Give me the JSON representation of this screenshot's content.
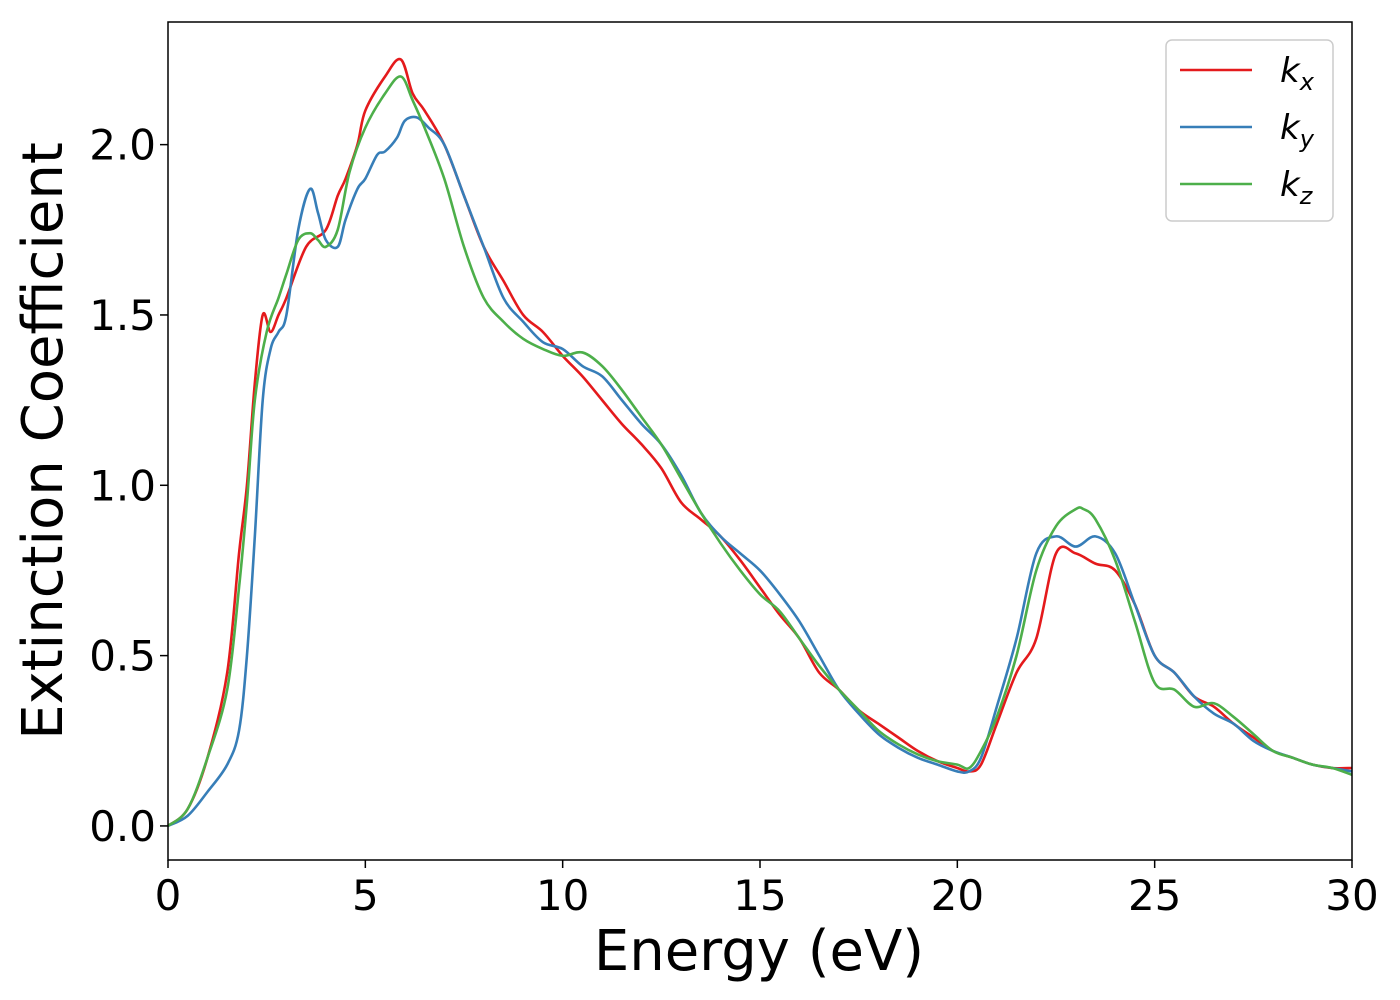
{
  "chart_data": {
    "type": "line",
    "xlabel": "Energy (eV)",
    "ylabel": "Extinction Coefficient",
    "xlim": [
      0,
      30
    ],
    "ylim": [
      -0.1,
      2.36
    ],
    "xticks": [
      "0",
      "5",
      "10",
      "15",
      "20",
      "25",
      "30"
    ],
    "yticks": [
      "0.0",
      "0.5",
      "1.0",
      "1.5",
      "2.0"
    ],
    "legend_position": "top-right",
    "grid": false,
    "series": [
      {
        "name": "k_x",
        "label_main": "k",
        "label_sub": "x",
        "color": "#e41a1c",
        "x": [
          0,
          0.5,
          1.0,
          1.5,
          1.8,
          2.0,
          2.2,
          2.4,
          2.6,
          2.8,
          3.0,
          3.5,
          4.0,
          4.3,
          4.5,
          4.8,
          5.0,
          5.5,
          5.9,
          6.2,
          6.5,
          7.0,
          7.5,
          8.0,
          8.5,
          9.0,
          9.5,
          10.0,
          10.5,
          11.0,
          11.5,
          12.0,
          12.5,
          13.0,
          13.5,
          14.0,
          14.5,
          15.0,
          15.5,
          16.0,
          16.5,
          17.0,
          17.5,
          18.0,
          18.5,
          19.0,
          19.5,
          20.0,
          20.3,
          20.6,
          21.0,
          21.5,
          22.0,
          22.5,
          23.0,
          23.5,
          24.0,
          24.5,
          25.0,
          25.5,
          26.0,
          26.5,
          27.0,
          27.5,
          28.0,
          28.5,
          29.0,
          29.5,
          30.0
        ],
        "y": [
          0.0,
          0.05,
          0.2,
          0.45,
          0.8,
          1.0,
          1.3,
          1.5,
          1.45,
          1.5,
          1.55,
          1.7,
          1.75,
          1.85,
          1.9,
          2.0,
          2.1,
          2.2,
          2.25,
          2.15,
          2.1,
          2.0,
          1.85,
          1.7,
          1.6,
          1.5,
          1.45,
          1.38,
          1.32,
          1.25,
          1.18,
          1.12,
          1.05,
          0.95,
          0.9,
          0.85,
          0.78,
          0.7,
          0.62,
          0.55,
          0.45,
          0.4,
          0.34,
          0.3,
          0.26,
          0.22,
          0.19,
          0.17,
          0.16,
          0.18,
          0.3,
          0.45,
          0.55,
          0.8,
          0.8,
          0.77,
          0.75,
          0.65,
          0.5,
          0.45,
          0.38,
          0.35,
          0.3,
          0.26,
          0.22,
          0.2,
          0.18,
          0.17,
          0.17
        ]
      },
      {
        "name": "k_y",
        "label_main": "k",
        "label_sub": "y",
        "color": "#377eb8",
        "x": [
          0,
          0.5,
          1.0,
          1.5,
          1.8,
          2.0,
          2.2,
          2.4,
          2.6,
          2.8,
          3.0,
          3.3,
          3.6,
          3.8,
          4.0,
          4.3,
          4.5,
          4.8,
          5.0,
          5.3,
          5.5,
          5.8,
          6.0,
          6.3,
          6.6,
          7.0,
          7.5,
          8.0,
          8.5,
          9.0,
          9.5,
          10.0,
          10.5,
          11.0,
          11.5,
          12.0,
          12.5,
          13.0,
          13.5,
          14.0,
          14.5,
          15.0,
          15.5,
          16.0,
          16.5,
          17.0,
          17.5,
          18.0,
          18.5,
          19.0,
          19.5,
          20.0,
          20.3,
          20.6,
          21.0,
          21.5,
          22.0,
          22.5,
          23.0,
          23.5,
          24.0,
          24.5,
          25.0,
          25.5,
          26.0,
          26.5,
          27.0,
          27.5,
          28.0,
          28.5,
          29.0,
          29.5,
          30.0
        ],
        "y": [
          0.0,
          0.03,
          0.1,
          0.18,
          0.28,
          0.5,
          0.85,
          1.25,
          1.4,
          1.45,
          1.5,
          1.75,
          1.87,
          1.8,
          1.72,
          1.7,
          1.78,
          1.87,
          1.9,
          1.97,
          1.98,
          2.02,
          2.07,
          2.08,
          2.05,
          2.0,
          1.85,
          1.7,
          1.55,
          1.48,
          1.42,
          1.4,
          1.35,
          1.32,
          1.25,
          1.18,
          1.12,
          1.03,
          0.92,
          0.85,
          0.8,
          0.75,
          0.68,
          0.6,
          0.5,
          0.4,
          0.33,
          0.27,
          0.23,
          0.2,
          0.18,
          0.16,
          0.16,
          0.2,
          0.35,
          0.55,
          0.8,
          0.85,
          0.82,
          0.85,
          0.8,
          0.65,
          0.5,
          0.45,
          0.38,
          0.33,
          0.3,
          0.25,
          0.22,
          0.2,
          0.18,
          0.17,
          0.16
        ]
      },
      {
        "name": "k_z",
        "label_main": "k",
        "label_sub": "z",
        "color": "#4daf4a",
        "x": [
          0,
          0.5,
          1.0,
          1.5,
          1.8,
          2.0,
          2.2,
          2.5,
          2.8,
          3.0,
          3.3,
          3.6,
          3.8,
          4.0,
          4.3,
          4.6,
          5.0,
          5.5,
          5.9,
          6.2,
          6.5,
          7.0,
          7.5,
          8.0,
          8.5,
          9.0,
          9.5,
          10.0,
          10.5,
          11.0,
          11.5,
          12.0,
          12.5,
          13.0,
          13.5,
          14.0,
          14.5,
          15.0,
          15.5,
          16.0,
          16.5,
          17.0,
          17.5,
          18.0,
          18.5,
          19.0,
          19.5,
          20.0,
          20.3,
          20.6,
          21.0,
          21.5,
          22.0,
          22.5,
          23.0,
          23.2,
          23.5,
          24.0,
          24.5,
          25.0,
          25.5,
          26.0,
          26.5,
          27.0,
          27.5,
          28.0,
          28.5,
          29.0,
          29.5,
          30.0
        ],
        "y": [
          0.0,
          0.05,
          0.2,
          0.4,
          0.7,
          0.95,
          1.25,
          1.45,
          1.55,
          1.62,
          1.72,
          1.74,
          1.72,
          1.7,
          1.75,
          1.92,
          2.05,
          2.15,
          2.2,
          2.13,
          2.05,
          1.9,
          1.7,
          1.55,
          1.48,
          1.43,
          1.4,
          1.38,
          1.39,
          1.35,
          1.28,
          1.2,
          1.12,
          1.02,
          0.92,
          0.83,
          0.75,
          0.68,
          0.63,
          0.55,
          0.47,
          0.4,
          0.34,
          0.28,
          0.24,
          0.21,
          0.19,
          0.18,
          0.17,
          0.22,
          0.32,
          0.5,
          0.75,
          0.88,
          0.93,
          0.93,
          0.9,
          0.78,
          0.6,
          0.42,
          0.4,
          0.35,
          0.36,
          0.32,
          0.27,
          0.22,
          0.2,
          0.18,
          0.17,
          0.15
        ]
      }
    ]
  }
}
